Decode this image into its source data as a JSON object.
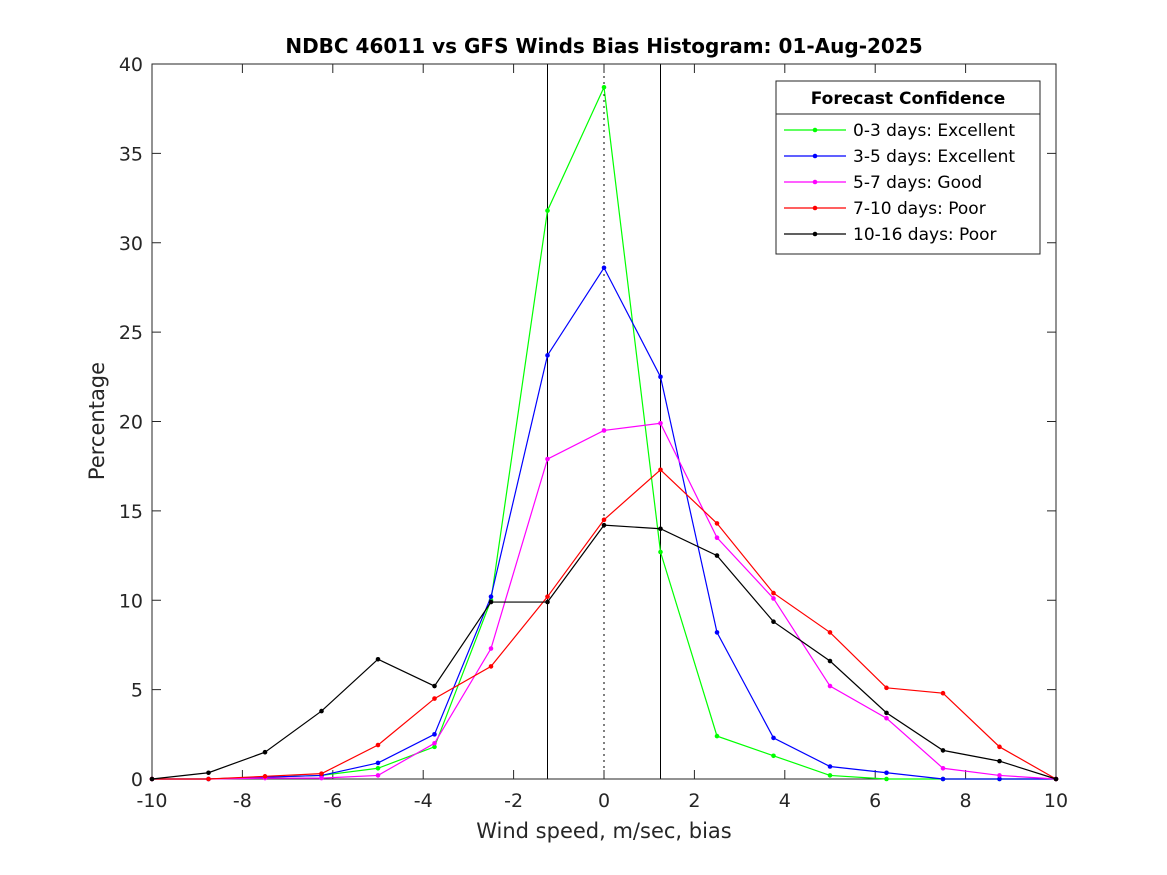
{
  "chart_data": {
    "type": "line",
    "title": "NDBC 46011 vs GFS Winds Bias Histogram: 01-Aug-2025",
    "xlabel": "Wind speed, m/sec, bias",
    "ylabel": "Percentage",
    "xlim": [
      -10,
      10
    ],
    "ylim": [
      0,
      40
    ],
    "xticks": [
      -10,
      -8,
      -6,
      -4,
      -2,
      0,
      2,
      4,
      6,
      8,
      10
    ],
    "yticks": [
      0,
      5,
      10,
      15,
      20,
      25,
      30,
      35,
      40
    ],
    "x": [
      -10,
      -8.75,
      -7.5,
      -6.25,
      -5,
      -3.75,
      -2.5,
      -1.25,
      0,
      1.25,
      2.5,
      3.75,
      5,
      6.25,
      7.5,
      8.75,
      10
    ],
    "grid": false,
    "legend": {
      "title": "Forecast Confidence",
      "placement": "top-right"
    },
    "reference_lines": {
      "solid_x": [
        -1.25,
        1.25
      ],
      "dotted_x": [
        0
      ]
    },
    "series": [
      {
        "name": "0-3 days: Excellent",
        "color": "#00ff00",
        "values": [
          0,
          0,
          0.1,
          0.2,
          0.6,
          1.8,
          10.0,
          31.8,
          38.7,
          12.7,
          2.4,
          1.3,
          0.2,
          0.0,
          0.0,
          0.0,
          0.0
        ]
      },
      {
        "name": "3-5 days: Excellent",
        "color": "#0000ff",
        "values": [
          0,
          0,
          0.1,
          0.2,
          0.9,
          2.5,
          10.2,
          23.7,
          28.6,
          22.5,
          8.2,
          2.3,
          0.7,
          0.35,
          0.0,
          0.0,
          0.0
        ]
      },
      {
        "name": "5-7 days: Good",
        "color": "#ff00ff",
        "values": [
          0,
          0,
          0.05,
          0.05,
          0.2,
          2.0,
          7.3,
          17.9,
          19.5,
          19.9,
          13.5,
          10.1,
          5.2,
          3.4,
          0.6,
          0.2,
          0.0
        ]
      },
      {
        "name": "7-10 days: Poor",
        "color": "#ff0000",
        "values": [
          0,
          0,
          0.15,
          0.3,
          1.9,
          4.5,
          6.3,
          10.2,
          14.5,
          17.3,
          14.3,
          10.4,
          8.2,
          5.1,
          4.8,
          1.8,
          0.0
        ]
      },
      {
        "name": "10-16 days: Poor",
        "color": "#000000",
        "values": [
          0,
          0.35,
          1.5,
          3.8,
          6.7,
          5.2,
          9.9,
          9.9,
          14.2,
          14.0,
          12.5,
          8.8,
          6.6,
          3.7,
          1.6,
          1.0,
          0.0
        ]
      }
    ]
  }
}
